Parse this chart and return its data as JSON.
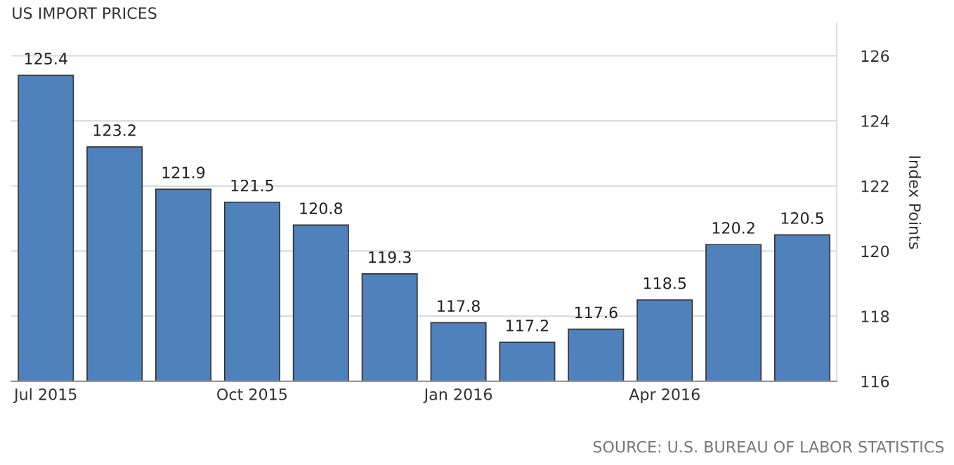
{
  "chart_data": {
    "type": "bar",
    "title": "US IMPORT PRICES",
    "ylabel": "Index Points",
    "categories": [
      "Jul 2015",
      null,
      null,
      "Oct 2015",
      null,
      null,
      "Jan 2016",
      null,
      null,
      "Apr 2016",
      null,
      null
    ],
    "values": [
      125.4,
      123.2,
      121.9,
      121.5,
      120.8,
      119.3,
      117.8,
      117.2,
      117.6,
      118.5,
      120.2,
      120.5
    ],
    "color": "#4f81bd",
    "ylim": [
      116,
      127
    ],
    "yticks": [
      116,
      118,
      120,
      122,
      124,
      126
    ],
    "grid": "y",
    "data_labels": true,
    "annotations": [
      "SOURCE: U.S. BUREAU OF LABOR STATISTICS"
    ]
  }
}
